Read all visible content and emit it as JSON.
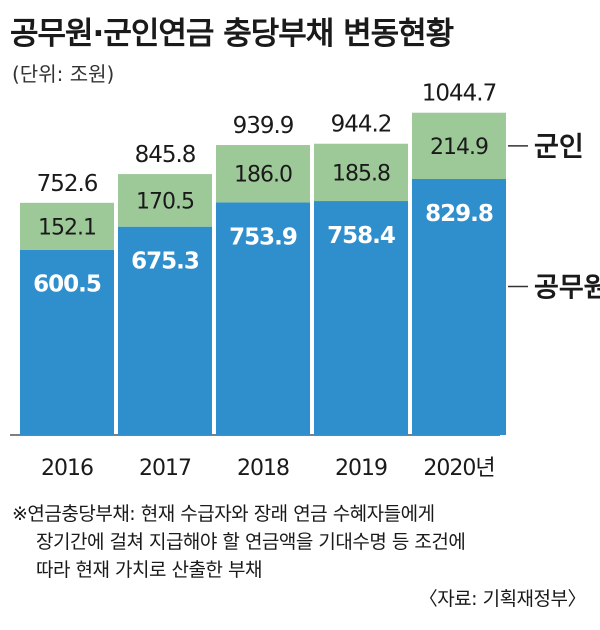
{
  "title": "공무원·군인연금 충당부채 변동현황",
  "unit": "(단위: 조원)",
  "chart_data": {
    "type": "bar",
    "stacked": true,
    "categories": [
      "2016",
      "2017",
      "2018",
      "2019",
      "2020년"
    ],
    "series": [
      {
        "name": "공무원",
        "values": [
          600.5,
          675.3,
          753.9,
          758.4,
          829.8
        ],
        "color": "#2f8fcd"
      },
      {
        "name": "군인",
        "values": [
          152.1,
          170.5,
          186.0,
          185.8,
          214.9
        ],
        "color": "#9dc999"
      }
    ],
    "totals": [
      "752.6",
      "845.8",
      "939.9",
      "944.2",
      "1044.7"
    ],
    "value_labels": {
      "공무원": [
        "600.5",
        "675.3",
        "753.9",
        "758.4",
        "829.8"
      ],
      "군인": [
        "152.1",
        "170.5",
        "186.0",
        "185.8",
        "214.9"
      ]
    },
    "ylim": [
      0,
      1100
    ],
    "grid": false,
    "legend": "right, line-pointer labels"
  },
  "footnote": {
    "line1": "※연금충당부채: 현재 수급자와 장래 연금 수혜자들에게",
    "line2": "장기간에 걸쳐 지급해야 할 연금액을 기대수명 등 조건에",
    "line3": "따라 현재 가치로 산출한 부채"
  },
  "source": "〈자료: 기획재정부〉"
}
